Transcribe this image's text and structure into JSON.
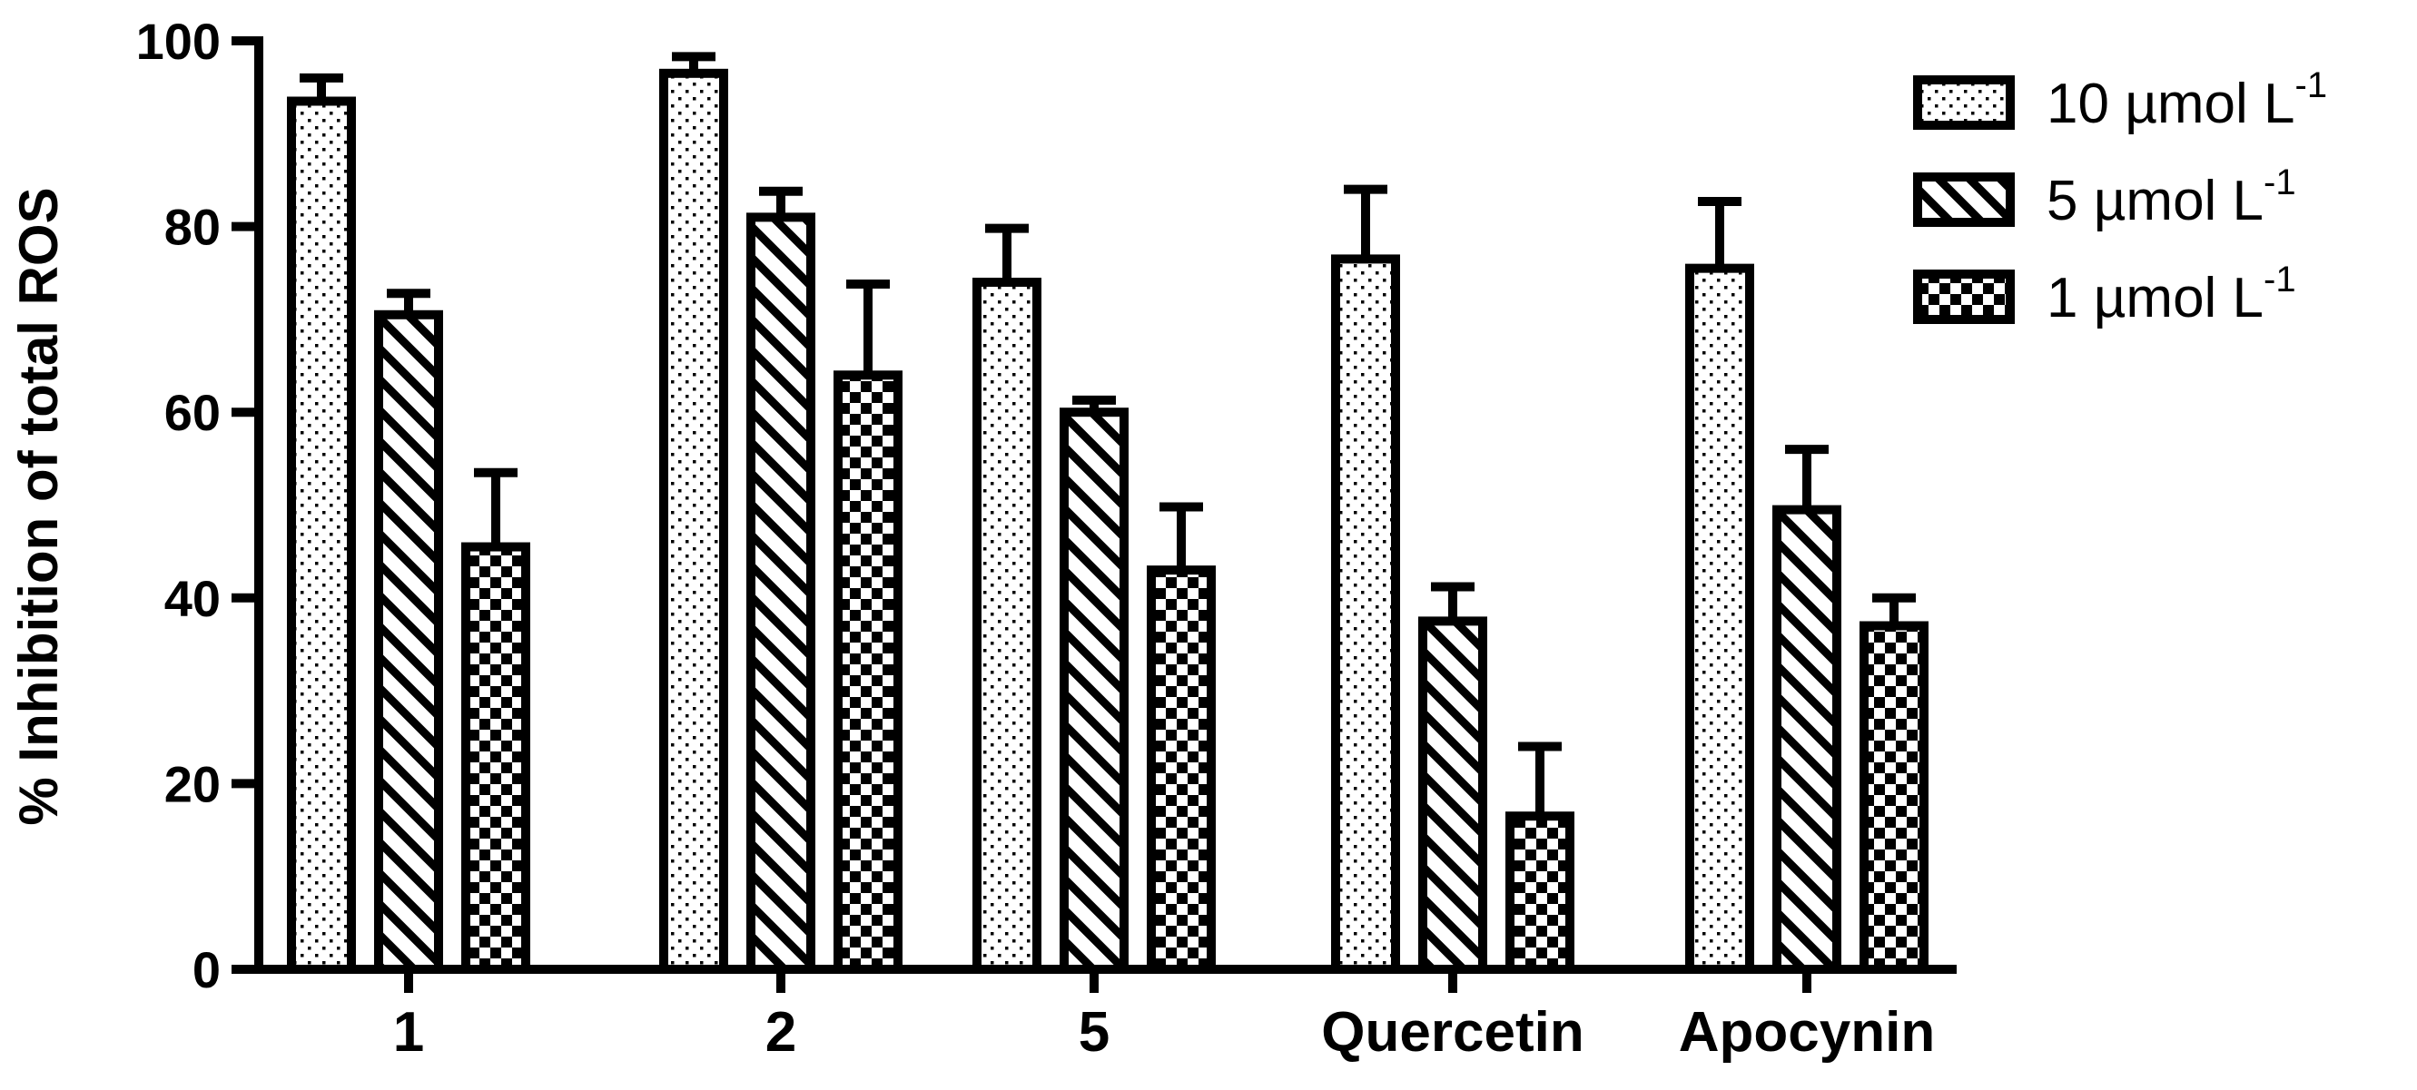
{
  "chart_data": {
    "type": "bar",
    "ylabel": "% Inhibition of total ROS",
    "xlabel": "",
    "ylim": [
      0,
      100
    ],
    "yticks": [
      0,
      20,
      40,
      60,
      80,
      100
    ],
    "categories": [
      "1",
      "2",
      "5",
      "Quercetin",
      "Apocynin"
    ],
    "legend_position": "top-right",
    "series": [
      {
        "name_main": "10 µmol L",
        "name_sup": "-1",
        "pattern": "dots",
        "values": [
          93.5,
          96.5,
          74,
          76.5,
          75.5
        ],
        "errors": [
          2.5,
          1.8,
          5.8,
          7.5,
          7.2
        ]
      },
      {
        "name_main": "5 µmol L",
        "name_sup": "-1",
        "pattern": "diagonal",
        "values": [
          70.5,
          81,
          60,
          37.5,
          49.5
        ],
        "errors": [
          2.3,
          2.8,
          1.3,
          3.7,
          6.5
        ]
      },
      {
        "name_main": "1 µmol L",
        "name_sup": "-1",
        "pattern": "checker",
        "values": [
          45.5,
          64,
          43,
          16.5,
          37
        ],
        "errors": [
          8,
          9.8,
          6.8,
          7.5,
          3
        ]
      }
    ]
  }
}
